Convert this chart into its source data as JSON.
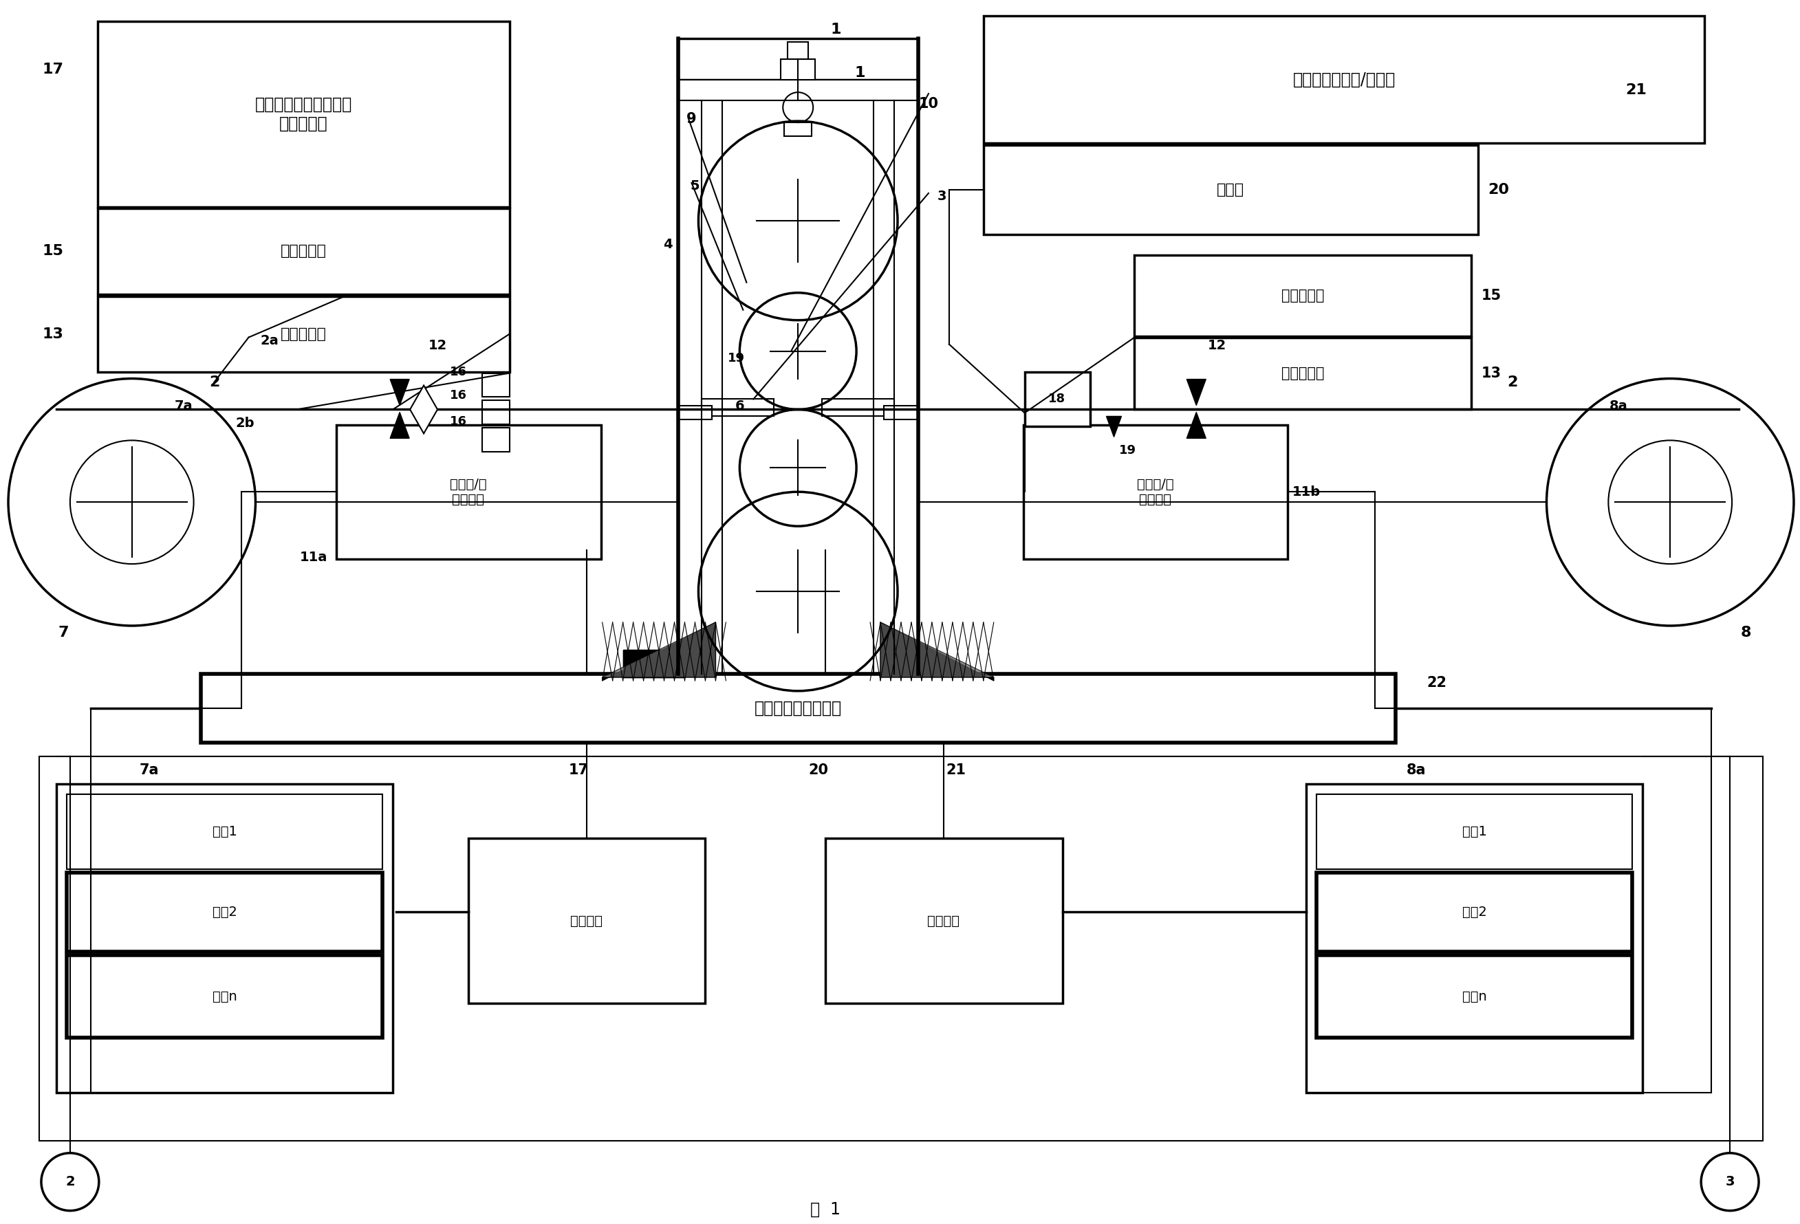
{
  "bg": "#ffffff",
  "texts": {
    "box17": "轧制带上侧面和下侧面\n的最小润滑",
    "box15": "轧制带厚度",
    "box13": "轧制带速度",
    "box_alt": "替代轧制润滑油/乳化液",
    "box_n2": "氮施加",
    "box15r": "轧制带厚度",
    "box13r": "轧制带速度",
    "flat_l": "平整度/轧\n制带张力",
    "flat_r": "平整度/轧\n制带张力",
    "online": "基于模型的在线调节",
    "med1": "介趈1",
    "med2": "介趈2",
    "medn": "介趈n",
    "medapply": "介趈施加",
    "fig": "图  1"
  }
}
